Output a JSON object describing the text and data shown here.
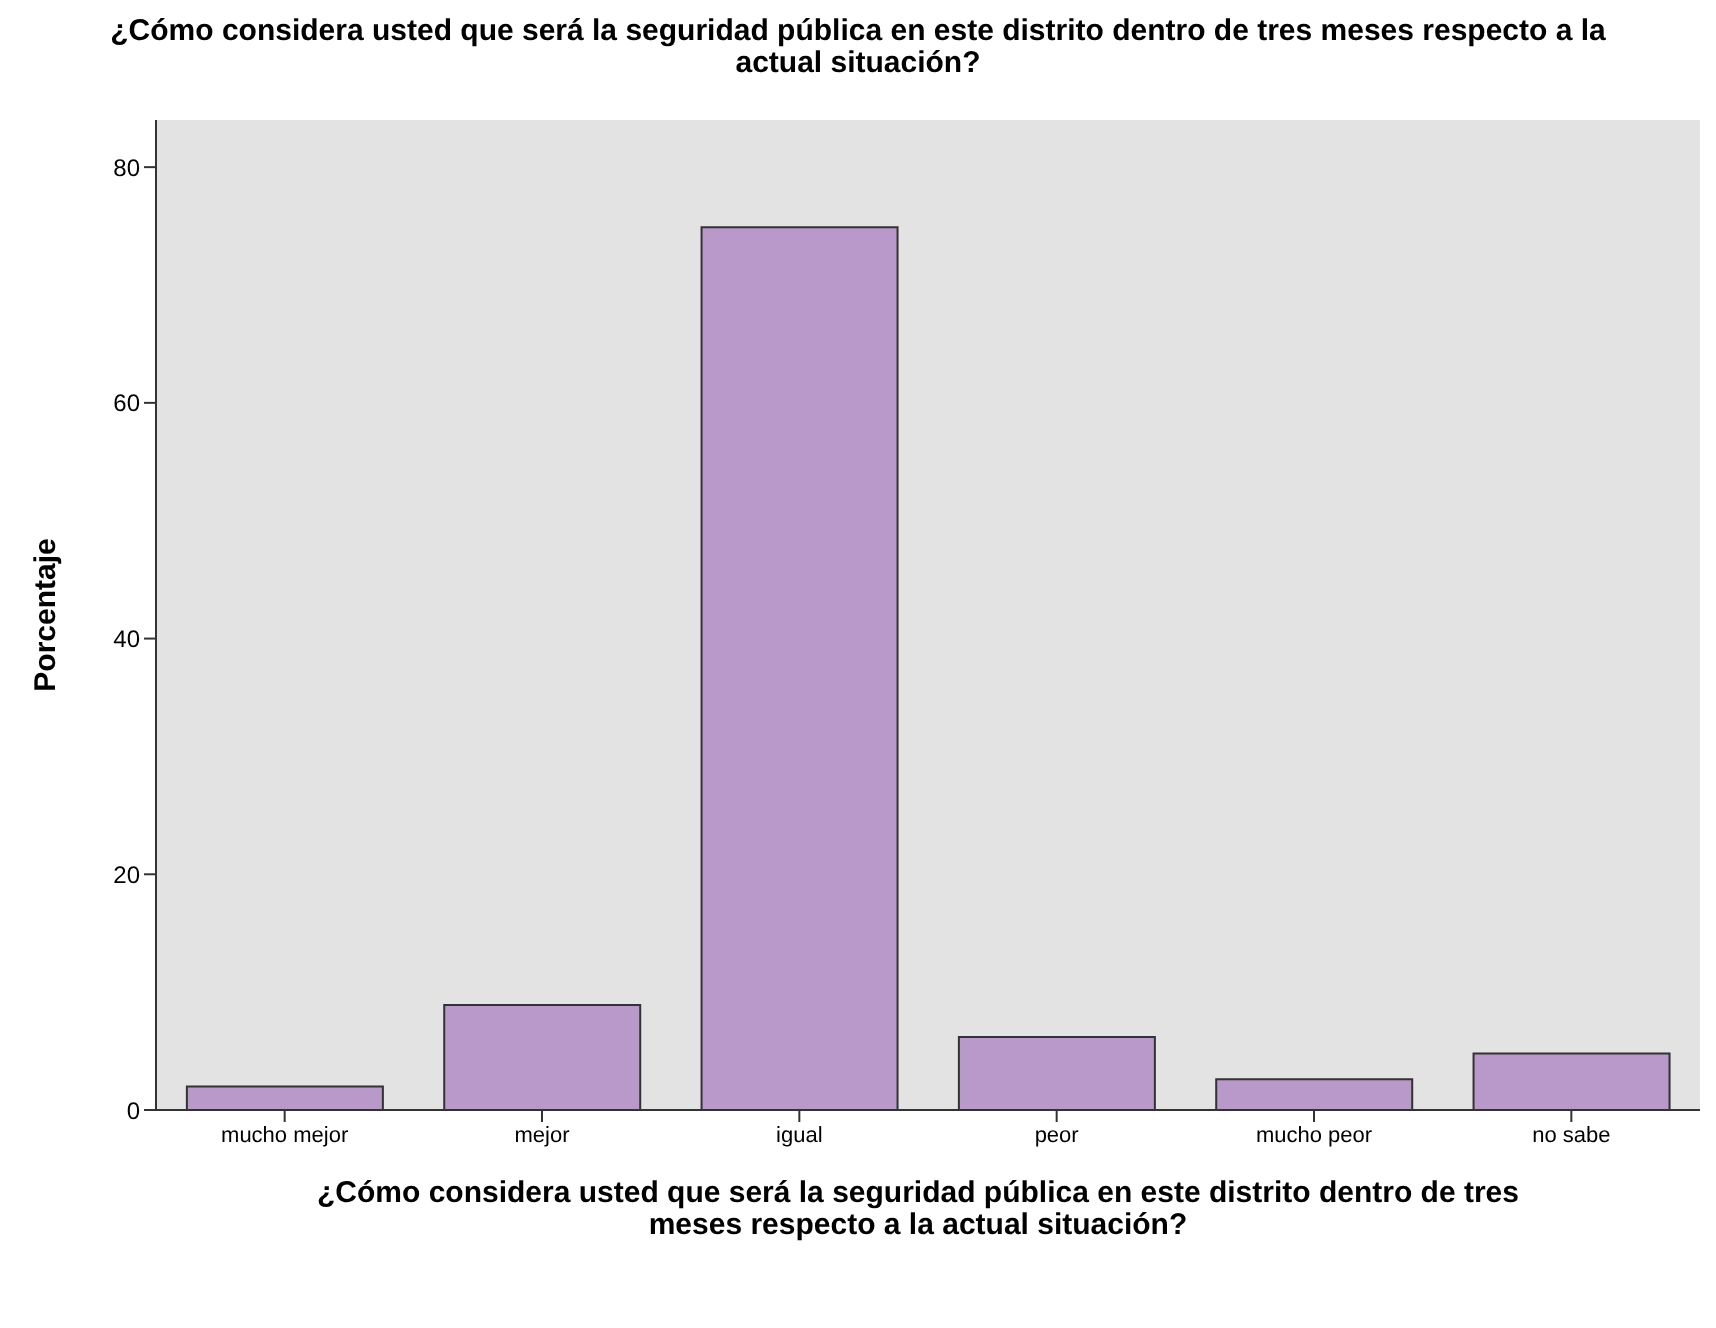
{
  "chart_data": {
    "type": "bar",
    "title": "¿Cómo considera usted que será la seguridad pública en este distrito dentro de tres meses respecto a la actual situación?",
    "xlabel": "¿Cómo considera usted que será la seguridad pública en este distrito dentro de tres meses respecto a la actual situación?",
    "ylabel": "Porcentaje",
    "categories": [
      "mucho mejor",
      "mejor",
      "igual",
      "peor",
      "mucho peor",
      "no sabe"
    ],
    "values": [
      2.0,
      8.9,
      74.9,
      6.2,
      2.6,
      4.8
    ],
    "color": "#b899c9",
    "ylim": [
      0,
      84
    ],
    "yticks": [
      0,
      20,
      40,
      60,
      80
    ],
    "grid": false
  }
}
